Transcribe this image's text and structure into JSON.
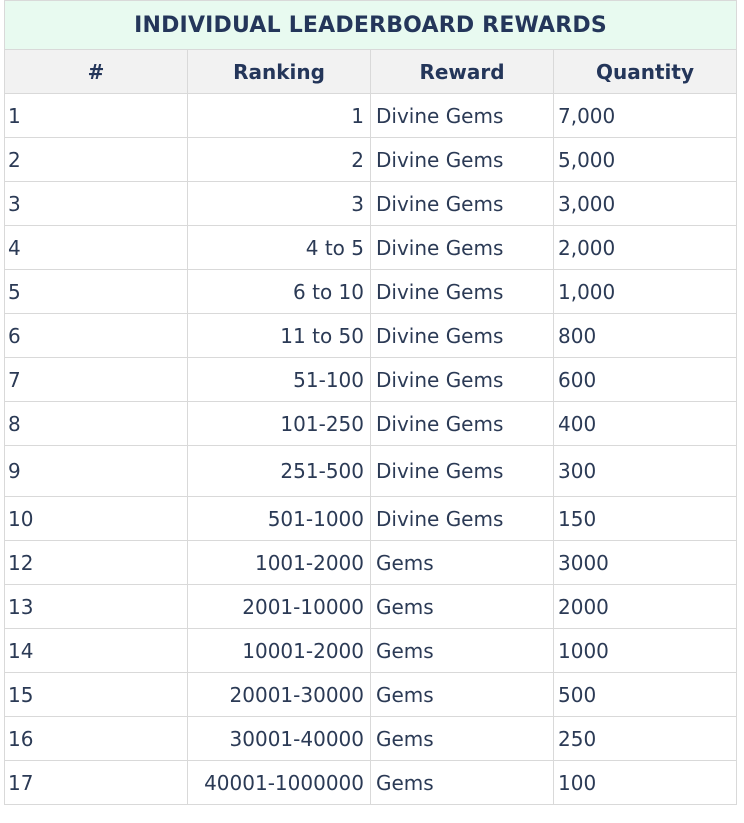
{
  "title": "INDIVIDUAL LEADERBOARD REWARDS",
  "columns": [
    "#",
    "Ranking",
    "Reward",
    "Quantity"
  ],
  "rows": [
    {
      "idx": "1",
      "ranking": "1",
      "reward": "Divine Gems",
      "quantity": "7,000"
    },
    {
      "idx": "2",
      "ranking": "2",
      "reward": "Divine Gems",
      "quantity": "5,000"
    },
    {
      "idx": "3",
      "ranking": "3",
      "reward": "Divine Gems",
      "quantity": "3,000"
    },
    {
      "idx": "4",
      "ranking": "4 to 5",
      "reward": "Divine Gems",
      "quantity": "2,000"
    },
    {
      "idx": "5",
      "ranking": "6 to 10",
      "reward": "Divine Gems",
      "quantity": "1,000"
    },
    {
      "idx": "6",
      "ranking": "11 to 50",
      "reward": "Divine Gems",
      "quantity": "800"
    },
    {
      "idx": "7",
      "ranking": "51-100",
      "reward": "Divine Gems",
      "quantity": "600"
    },
    {
      "idx": "8",
      "ranking": "101-250",
      "reward": "Divine Gems",
      "quantity": "400"
    },
    {
      "idx": "9",
      "ranking": "251-500",
      "reward": "Divine Gems",
      "quantity": "300"
    },
    {
      "idx": "10",
      "ranking": "501-1000",
      "reward": "Divine Gems",
      "quantity": "150"
    },
    {
      "idx": "12",
      "ranking": "1001-2000",
      "reward": "Gems",
      "quantity": "3000"
    },
    {
      "idx": "13",
      "ranking": "2001-10000",
      "reward": "Gems",
      "quantity": "2000"
    },
    {
      "idx": "14",
      "ranking": "10001-2000",
      "reward": "Gems",
      "quantity": "1000"
    },
    {
      "idx": "15",
      "ranking": "20001-30000",
      "reward": "Gems",
      "quantity": "500"
    },
    {
      "idx": "16",
      "ranking": "30001-40000",
      "reward": "Gems",
      "quantity": "250"
    },
    {
      "idx": "17",
      "ranking": "40001-1000000",
      "reward": "Gems",
      "quantity": "100"
    }
  ],
  "colors": {
    "title_background": "#e8faf0",
    "header_background": "#f2f2f2",
    "text": "#2b3a55",
    "border": "#d9d9d9"
  }
}
